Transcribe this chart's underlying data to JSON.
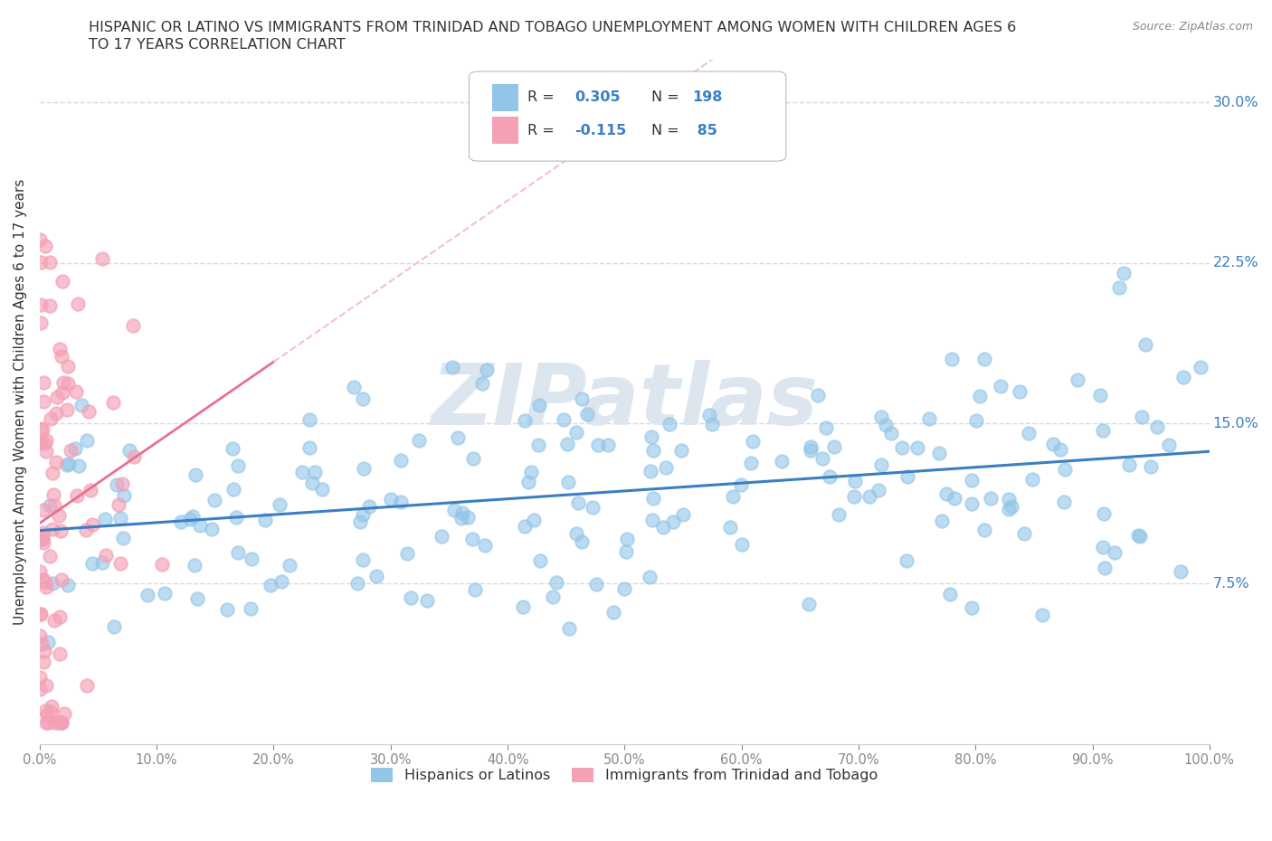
{
  "title_line1": "HISPANIC OR LATINO VS IMMIGRANTS FROM TRINIDAD AND TOBAGO UNEMPLOYMENT AMONG WOMEN WITH CHILDREN AGES 6",
  "title_line2": "TO 17 YEARS CORRELATION CHART",
  "source": "Source: ZipAtlas.com",
  "ylabel": "Unemployment Among Women with Children Ages 6 to 17 years",
  "xlim": [
    0.0,
    1.0
  ],
  "ylim": [
    0.0,
    0.32
  ],
  "xtick_labels": [
    "0.0%",
    "10.0%",
    "20.0%",
    "30.0%",
    "40.0%",
    "50.0%",
    "60.0%",
    "70.0%",
    "80.0%",
    "90.0%",
    "100.0%"
  ],
  "xtick_vals": [
    0.0,
    0.1,
    0.2,
    0.3,
    0.4,
    0.5,
    0.6,
    0.7,
    0.8,
    0.9,
    1.0
  ],
  "ytick_labels": [
    "7.5%",
    "15.0%",
    "22.5%",
    "30.0%"
  ],
  "ytick_vals": [
    0.075,
    0.15,
    0.225,
    0.3
  ],
  "R1": 0.305,
  "N1": 198,
  "R2": -0.115,
  "N2": 85,
  "color_blue": "#92c5e8",
  "color_pink": "#f4a0b5",
  "color_line_blue": "#3a7fc1",
  "color_line_pink": "#e87090",
  "color_line_pink_ext": "#f4c0cc",
  "watermark": "ZIPatlas",
  "watermark_color": "#dde6ef",
  "background_color": "#ffffff",
  "grid_color": "#d8d8d8",
  "legend_label1": "Hispanics or Latinos",
  "legend_label2": "Immigrants from Trinidad and Tobago"
}
